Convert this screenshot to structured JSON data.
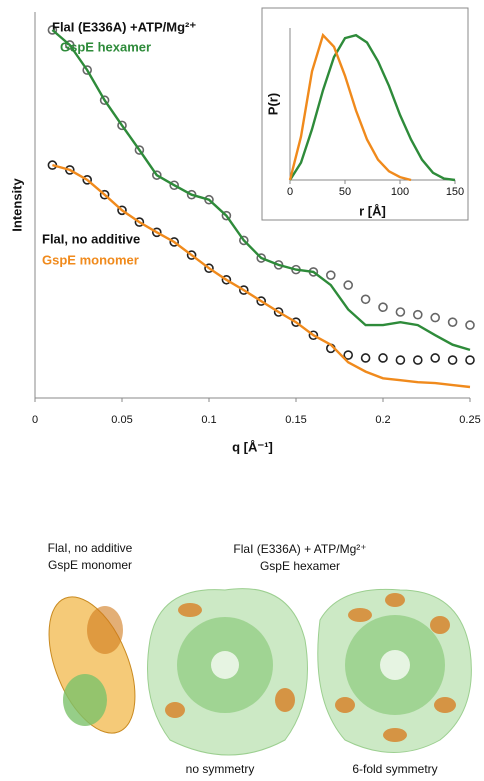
{
  "chart_data": [
    {
      "type": "line",
      "yscale": "log",
      "xlabel": "q [Å⁻¹]",
      "ylabel": "Intensity",
      "x": [
        0.01,
        0.02,
        0.03,
        0.04,
        0.05,
        0.06,
        0.07,
        0.08,
        0.09,
        0.1,
        0.11,
        0.12,
        0.13,
        0.14,
        0.15,
        0.16,
        0.17,
        0.18,
        0.19,
        0.2,
        0.21,
        0.22,
        0.23,
        0.24,
        0.25
      ],
      "xlim": [
        0,
        0.25
      ],
      "xticks": [
        0,
        0.05,
        0.1,
        0.15,
        0.2,
        0.25
      ],
      "ylim": [
        0.0001,
        10
      ],
      "series": [
        {
          "name": "FlaI (E336A) +ATP/Mg²⁺",
          "color": "#666666",
          "mode": "markers",
          "values": [
            5.85,
            3.74,
            1.77,
            0.72,
            0.34,
            0.163,
            0.077,
            0.057,
            0.043,
            0.037,
            0.023,
            0.011,
            0.0065,
            0.0053,
            0.0046,
            0.0043,
            0.0039,
            0.0029,
            0.0019,
            0.0015,
            0.0013,
            0.0012,
            0.0011,
            0.00096,
            0.00088
          ]
        },
        {
          "name": "GspE hexamer",
          "color": "#2e8b3a",
          "mode": "line",
          "values": [
            5.85,
            3.74,
            1.77,
            0.72,
            0.34,
            0.163,
            0.077,
            0.057,
            0.043,
            0.037,
            0.023,
            0.011,
            0.0065,
            0.0053,
            0.0046,
            0.0043,
            0.0029,
            0.0014,
            0.00088,
            0.00088,
            0.00096,
            0.00088,
            0.00065,
            0.00049,
            0.00042
          ]
        },
        {
          "name": "FlaI, no additive",
          "color": "#222222",
          "mode": "markers",
          "values": [
            0.104,
            0.09,
            0.067,
            0.043,
            0.027,
            0.019,
            0.014,
            0.0105,
            0.0071,
            0.0048,
            0.0034,
            0.0025,
            0.0018,
            0.0013,
            0.00096,
            0.00065,
            0.00044,
            0.00036,
            0.00033,
            0.00033,
            0.00031,
            0.00031,
            0.00033,
            0.00031,
            0.00031
          ]
        },
        {
          "name": "GspE monomer",
          "color": "#f08a1c",
          "mode": "line",
          "values": [
            0.104,
            0.09,
            0.067,
            0.043,
            0.027,
            0.019,
            0.014,
            0.0105,
            0.0071,
            0.0048,
            0.0034,
            0.0025,
            0.0018,
            0.0013,
            0.00096,
            0.00065,
            0.00049,
            0.00029,
            0.00022,
            0.00018,
            0.00017,
            0.00016,
            0.000156,
            0.000147,
            0.000139
          ]
        }
      ]
    },
    {
      "type": "line",
      "xlabel": "r [Å]",
      "ylabel": "P(r)",
      "x": [
        0,
        10,
        20,
        30,
        40,
        50,
        60,
        70,
        80,
        90,
        100,
        110,
        120,
        130,
        140,
        150
      ],
      "xlim": [
        0,
        150
      ],
      "xticks": [
        0,
        50,
        100,
        150
      ],
      "ylim": [
        0,
        1.05
      ],
      "series": [
        {
          "name": "GspE hexamer",
          "color": "#2e8b3a",
          "mode": "line",
          "values": [
            0,
            0.12,
            0.35,
            0.62,
            0.85,
            0.98,
            1.0,
            0.95,
            0.82,
            0.65,
            0.45,
            0.28,
            0.14,
            0.05,
            0.01,
            0
          ]
        },
        {
          "name": "GspE monomer",
          "color": "#f08a1c",
          "mode": "line",
          "values": [
            0,
            0.3,
            0.75,
            1.0,
            0.92,
            0.72,
            0.48,
            0.28,
            0.14,
            0.06,
            0.02,
            0,
            null,
            null,
            null,
            null
          ]
        }
      ]
    }
  ],
  "structures": {
    "monomer_label": [
      "FlaI, no additive",
      "GspE monomer"
    ],
    "hexamer_label": [
      "FlaI (E336A) + ATP/Mg²⁺",
      "GspE hexamer"
    ],
    "captions": [
      "no symmetry",
      "6-fold symmetry"
    ]
  }
}
